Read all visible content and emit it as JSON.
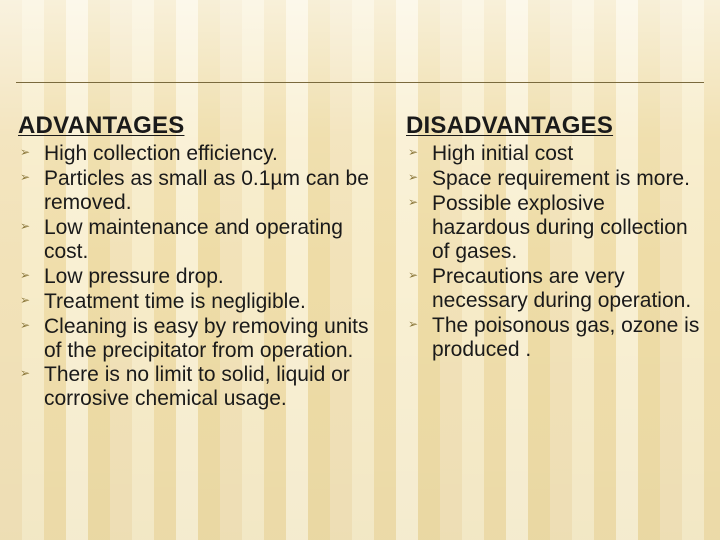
{
  "slide": {
    "background": {
      "stripe_colors": [
        "#f2e2b8",
        "#f7ecc9",
        "#f0deab",
        "#f9f0d3",
        "#eedca6"
      ],
      "rule_color": "#7a6a3d"
    },
    "bullet_marker_color": "#8a7638",
    "text_color": "#1a1a1a",
    "heading_fontsize_pt": 18,
    "body_fontsize_pt": 16,
    "left": {
      "heading": "ADVANTAGES",
      "items": [
        "High collection efficiency.",
        "Particles as small as 0.1µm can be removed.",
        "Low maintenance and operating cost.",
        "Low pressure drop.",
        "Treatment time is negligible.",
        "Cleaning is easy by removing units of the precipitator from operation.",
        "There is no limit to solid, liquid or corrosive chemical usage."
      ]
    },
    "right": {
      "heading": "DISADVANTAGES",
      "items": [
        "High initial cost",
        "Space requirement is more.",
        "Possible explosive hazardous during collection of gases.",
        "Precautions are very necessary during operation.",
        "The poisonous gas, ozone is produced ."
      ]
    }
  }
}
